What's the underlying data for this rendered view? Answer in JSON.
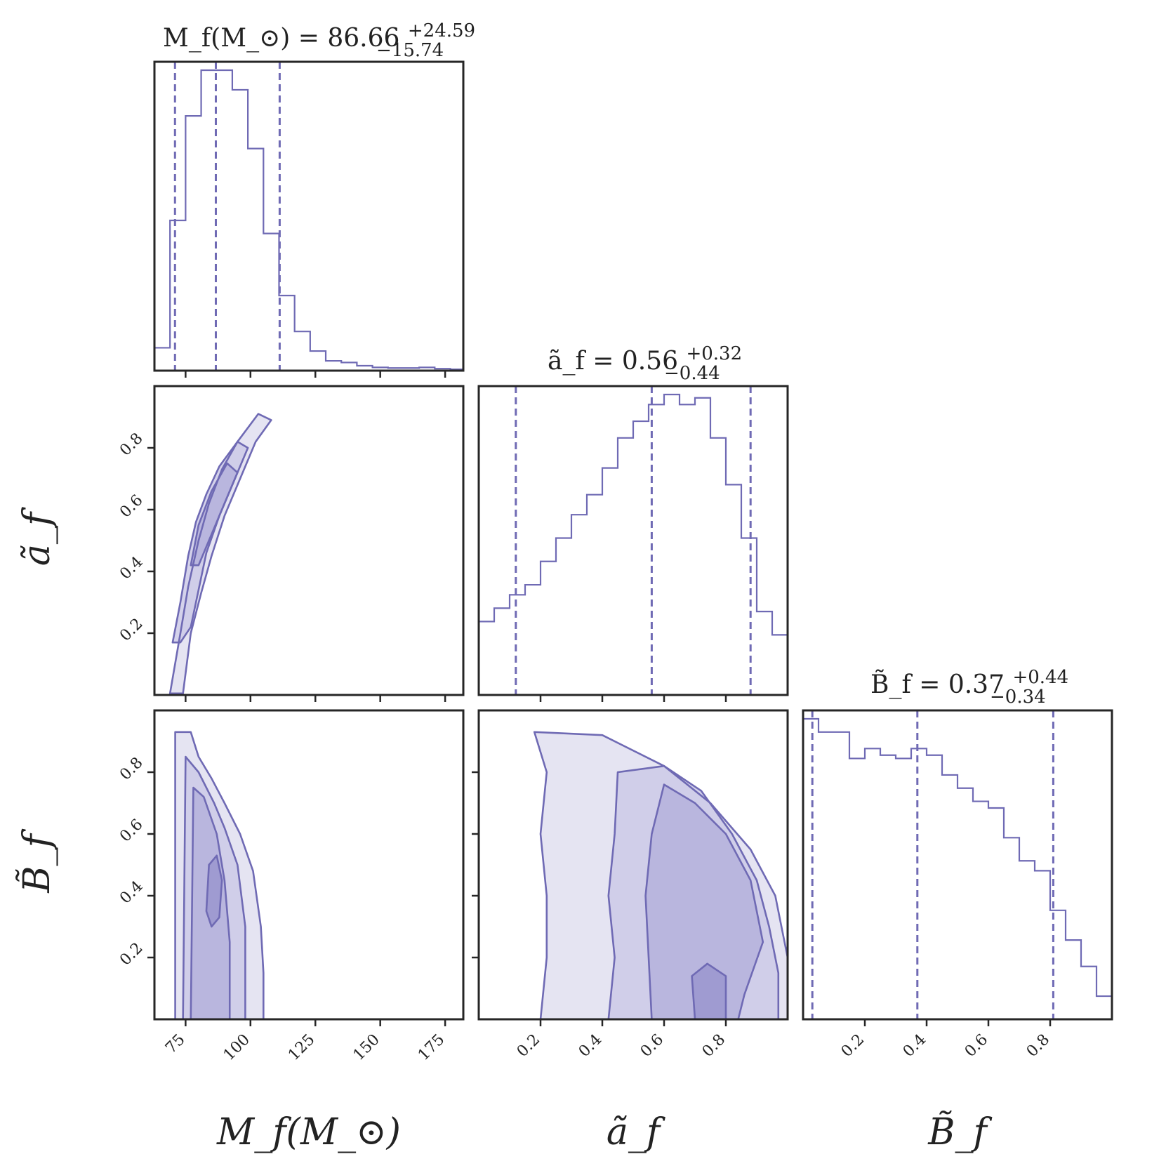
{
  "colors": {
    "accent": "#6f6ab4",
    "axes": "#262626",
    "density": [
      "#f1f0f8",
      "#e1dff0",
      "#cdcae7",
      "#b5b1dc",
      "#9a96cf",
      "#7e79c1"
    ]
  },
  "chart_data": {
    "type": "corner",
    "parameters": [
      {
        "key": "Mf",
        "label": "M_f(M_⊙)",
        "range": [
          63,
          182
        ],
        "ticks": [
          75,
          100,
          125,
          150,
          175
        ],
        "tick_labels": [
          "75",
          "100",
          "125",
          "150",
          "175"
        ]
      },
      {
        "key": "af",
        "label": "ã_f",
        "range": [
          0.0,
          1.0
        ],
        "ticks": [
          0.2,
          0.4,
          0.6,
          0.8
        ],
        "tick_labels": [
          "0.2",
          "0.4",
          "0.6",
          "0.8"
        ]
      },
      {
        "key": "Bf",
        "label": "B̃_f",
        "range": [
          0.0,
          1.0
        ],
        "ticks": [
          0.2,
          0.4,
          0.6,
          0.8
        ],
        "tick_labels": [
          "0.2",
          "0.4",
          "0.6",
          "0.8"
        ]
      }
    ],
    "titles": [
      {
        "lhs": "M_f(M_⊙) = 86.66",
        "plus": "+24.59",
        "minus": "−15.74"
      },
      {
        "lhs": "ã_f = 0.56",
        "plus": "+0.32",
        "minus": "−0.44"
      },
      {
        "lhs": "B̃_f = 0.37",
        "plus": "+0.44",
        "minus": "−0.34"
      }
    ],
    "quantiles": {
      "Mf": [
        70.92,
        86.66,
        111.25
      ],
      "af": [
        0.12,
        0.56,
        0.88
      ],
      "Bf": [
        0.03,
        0.37,
        0.81
      ]
    },
    "histograms": {
      "Mf": {
        "edges": [
          63,
          69,
          75,
          81,
          87,
          93,
          99,
          105,
          111,
          117,
          123,
          129,
          135,
          141,
          147,
          153,
          159,
          165,
          171,
          177,
          182
        ],
        "counts": [
          0.07,
          0.46,
          0.78,
          0.92,
          0.92,
          0.86,
          0.68,
          0.42,
          0.23,
          0.12,
          0.06,
          0.03,
          0.025,
          0.015,
          0.01,
          0.008,
          0.008,
          0.01,
          0.006,
          0.004
        ]
      },
      "af": {
        "edges": [
          0.0,
          0.05,
          0.1,
          0.15,
          0.2,
          0.25,
          0.3,
          0.35,
          0.4,
          0.45,
          0.5,
          0.55,
          0.6,
          0.65,
          0.7,
          0.75,
          0.8,
          0.85,
          0.9,
          0.95,
          1.0
        ],
        "counts": [
          0.22,
          0.26,
          0.3,
          0.33,
          0.4,
          0.47,
          0.54,
          0.6,
          0.68,
          0.77,
          0.82,
          0.87,
          0.9,
          0.87,
          0.89,
          0.77,
          0.63,
          0.47,
          0.25,
          0.18
        ]
      },
      "Bf": {
        "edges": [
          0.0,
          0.05,
          0.1,
          0.15,
          0.2,
          0.25,
          0.3,
          0.35,
          0.4,
          0.45,
          0.5,
          0.55,
          0.6,
          0.65,
          0.7,
          0.75,
          0.8,
          0.85,
          0.9,
          0.95,
          1.0
        ],
        "counts": [
          0.91,
          0.87,
          0.87,
          0.79,
          0.82,
          0.8,
          0.79,
          0.82,
          0.8,
          0.74,
          0.7,
          0.66,
          0.64,
          0.55,
          0.48,
          0.45,
          0.33,
          0.24,
          0.16,
          0.07
        ]
      }
    },
    "joint": {
      "Mf_af": {
        "contours": [
          {
            "level": 1,
            "points": [
              [
                69,
                0.005
              ],
              [
                73,
                0.2
              ],
              [
                76,
                0.35
              ],
              [
                80,
                0.5
              ],
              [
                84,
                0.62
              ],
              [
                89,
                0.73
              ],
              [
                95,
                0.82
              ],
              [
                103,
                0.91
              ],
              [
                108,
                0.89
              ],
              [
                102,
                0.82
              ],
              [
                96,
                0.7
              ],
              [
                90,
                0.58
              ],
              [
                85,
                0.45
              ],
              [
                81,
                0.33
              ],
              [
                77,
                0.2
              ],
              [
                74,
                0.005
              ]
            ]
          },
          {
            "level": 2,
            "points": [
              [
                70,
                0.17
              ],
              [
                73,
                0.3
              ],
              [
                76,
                0.45
              ],
              [
                79,
                0.56
              ],
              [
                83,
                0.65
              ],
              [
                88,
                0.74
              ],
              [
                95,
                0.82
              ],
              [
                99,
                0.8
              ],
              [
                94,
                0.7
              ],
              [
                88,
                0.58
              ],
              [
                83,
                0.46
              ],
              [
                80,
                0.34
              ],
              [
                77,
                0.22
              ],
              [
                73,
                0.17
              ]
            ]
          },
          {
            "level": 3,
            "points": [
              [
                77,
                0.42
              ],
              [
                80,
                0.55
              ],
              [
                85,
                0.66
              ],
              [
                91,
                0.75
              ],
              [
                95,
                0.72
              ],
              [
                90,
                0.62
              ],
              [
                84,
                0.5
              ],
              [
                80,
                0.42
              ]
            ]
          }
        ]
      },
      "Mf_Bf": {
        "contours": [
          {
            "level": 1,
            "points": [
              [
                71,
                0.0
              ],
              [
                71,
                0.93
              ],
              [
                77,
                0.93
              ],
              [
                80,
                0.85
              ],
              [
                85,
                0.78
              ],
              [
                90,
                0.7
              ],
              [
                96,
                0.6
              ],
              [
                101,
                0.48
              ],
              [
                104,
                0.3
              ],
              [
                105,
                0.15
              ],
              [
                105,
                0.0
              ]
            ]
          },
          {
            "level": 2,
            "points": [
              [
                74,
                0.0
              ],
              [
                75,
                0.85
              ],
              [
                80,
                0.8
              ],
              [
                86,
                0.7
              ],
              [
                90,
                0.62
              ],
              [
                95,
                0.5
              ],
              [
                98,
                0.3
              ],
              [
                98,
                0.0
              ]
            ]
          },
          {
            "level": 3,
            "points": [
              [
                77,
                0.0
              ],
              [
                78,
                0.75
              ],
              [
                82,
                0.72
              ],
              [
                87,
                0.6
              ],
              [
                90,
                0.45
              ],
              [
                92,
                0.25
              ],
              [
                92,
                0.0
              ]
            ]
          },
          {
            "level": 4,
            "points": [
              [
                83,
                0.35
              ],
              [
                84,
                0.5
              ],
              [
                87,
                0.53
              ],
              [
                89,
                0.45
              ],
              [
                88,
                0.33
              ],
              [
                85,
                0.3
              ]
            ]
          }
        ]
      },
      "af_Bf": {
        "contours": [
          {
            "level": 1,
            "points": [
              [
                0.2,
                0.0
              ],
              [
                0.22,
                0.2
              ],
              [
                0.22,
                0.4
              ],
              [
                0.2,
                0.6
              ],
              [
                0.22,
                0.8
              ],
              [
                0.18,
                0.93
              ],
              [
                0.4,
                0.92
              ],
              [
                0.6,
                0.82
              ],
              [
                0.75,
                0.7
              ],
              [
                0.88,
                0.55
              ],
              [
                0.96,
                0.4
              ],
              [
                1.0,
                0.2
              ],
              [
                1.0,
                0.0
              ]
            ]
          },
          {
            "level": 2,
            "points": [
              [
                0.42,
                0.0
              ],
              [
                0.44,
                0.2
              ],
              [
                0.42,
                0.4
              ],
              [
                0.44,
                0.6
              ],
              [
                0.45,
                0.8
              ],
              [
                0.6,
                0.82
              ],
              [
                0.72,
                0.74
              ],
              [
                0.82,
                0.6
              ],
              [
                0.9,
                0.45
              ],
              [
                0.94,
                0.3
              ],
              [
                0.97,
                0.15
              ],
              [
                0.97,
                0.0
              ]
            ]
          },
          {
            "level": 3,
            "points": [
              [
                0.56,
                0.0
              ],
              [
                0.55,
                0.2
              ],
              [
                0.54,
                0.4
              ],
              [
                0.56,
                0.6
              ],
              [
                0.6,
                0.76
              ],
              [
                0.7,
                0.7
              ],
              [
                0.8,
                0.6
              ],
              [
                0.88,
                0.45
              ],
              [
                0.92,
                0.25
              ],
              [
                0.86,
                0.08
              ],
              [
                0.84,
                0.0
              ]
            ]
          },
          {
            "level": 4,
            "points": [
              [
                0.7,
                0.0
              ],
              [
                0.69,
                0.14
              ],
              [
                0.74,
                0.18
              ],
              [
                0.8,
                0.14
              ],
              [
                0.8,
                0.0
              ]
            ]
          }
        ]
      }
    },
    "axis_labels": {
      "Mf": "M_f(M_⊙)",
      "af": "ã_f",
      "Bf": "B̃_f"
    }
  }
}
